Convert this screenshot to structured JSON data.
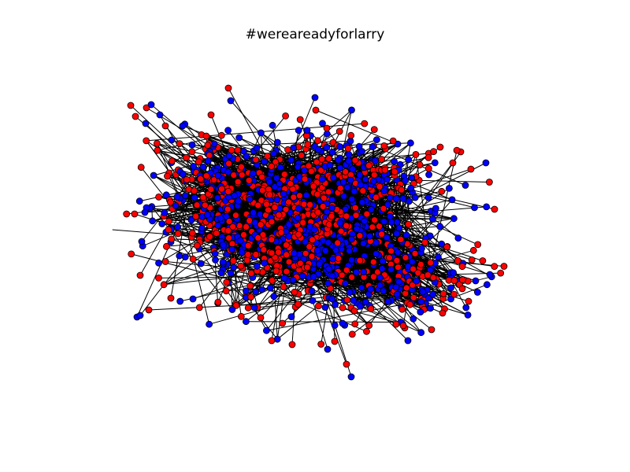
{
  "figure": {
    "title": "#wereareadyforlarry"
  },
  "graph": {
    "type": "network",
    "node_colors": {
      "red": "#ff0000",
      "blue": "#0000ff"
    },
    "edge_color": "#000000",
    "node_stroke_color": "#000000",
    "node_count_estimate": 1400,
    "red_share_estimate": 0.5,
    "grid": false,
    "axes_visible": false
  }
}
